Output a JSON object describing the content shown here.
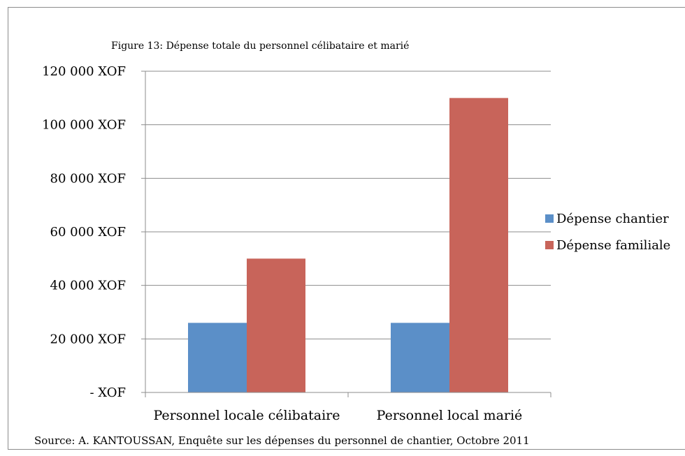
{
  "chart_data": {
    "type": "bar",
    "title": "Figure 13: Dépense  totale du personnel  célibataire et marié",
    "categories": [
      "Personnel locale célibataire",
      "Personnel local marié"
    ],
    "series": [
      {
        "name": "Dépense chantier",
        "values": [
          26000,
          26000
        ],
        "color": "#5b8fc8"
      },
      {
        "name": "Dépense familiale",
        "values": [
          50000,
          110000
        ],
        "color": "#c8645a"
      }
    ],
    "ylim": [
      0,
      120000
    ],
    "yticks": [
      0,
      20000,
      40000,
      60000,
      80000,
      100000,
      120000
    ],
    "ytick_labels": [
      "- XOF",
      "20 000 XOF",
      "40 000 XOF",
      "60 000 XOF",
      "80 000 XOF",
      "100 000 XOF",
      "120 000 XOF"
    ],
    "grid": true,
    "legend_position": "right",
    "source": "Source: A. KANTOUSSAN, Enquête sur les dépenses du personnel de chantier, Octobre 2011"
  }
}
